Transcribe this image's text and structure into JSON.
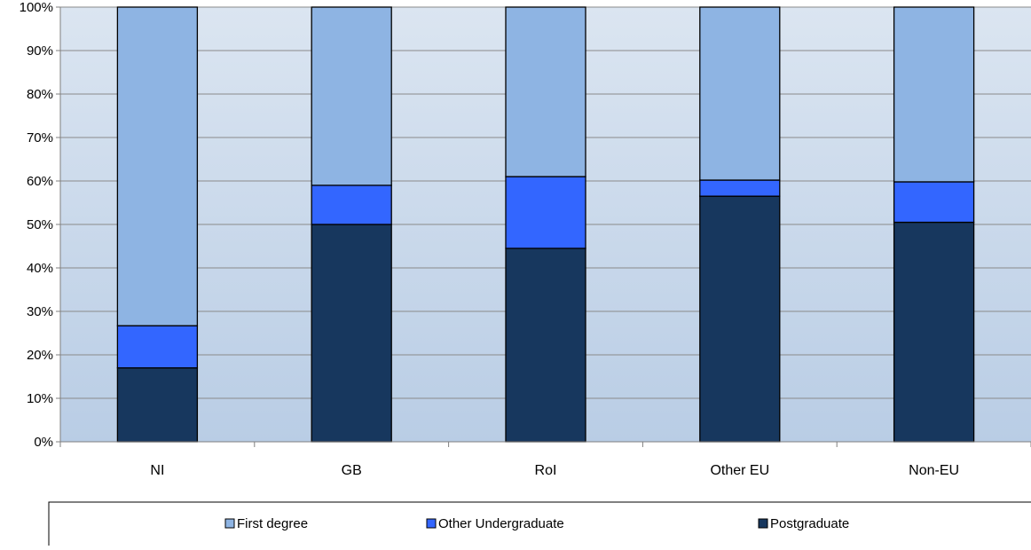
{
  "chart_data": {
    "type": "bar",
    "stacked": true,
    "percent_axis": true,
    "categories": [
      "NI",
      "GB",
      "RoI",
      "Other EU",
      "Non-EU"
    ],
    "series": [
      {
        "name": "Postgraduate",
        "values": [
          17,
          50,
          44.5,
          56.5,
          50.5
        ],
        "color": "#17375e"
      },
      {
        "name": "Other Undergraduate",
        "values": [
          9.7,
          9,
          16.5,
          3.7,
          9.3
        ],
        "color": "#3366ff"
      },
      {
        "name": "First degree",
        "values": [
          73.3,
          41,
          39,
          39.8,
          40.2
        ],
        "color": "#8eb4e3"
      }
    ],
    "yticks": [
      "0%",
      "10%",
      "20%",
      "30%",
      "40%",
      "50%",
      "60%",
      "70%",
      "80%",
      "90%",
      "100%"
    ],
    "ylim": [
      0,
      100
    ],
    "grid": true,
    "legend": {
      "position": "bottom",
      "order": [
        "First degree",
        "Other Undergraduate",
        "Postgraduate"
      ]
    },
    "plot_background": [
      "#dbe5f1",
      "#b9cde5"
    ]
  }
}
